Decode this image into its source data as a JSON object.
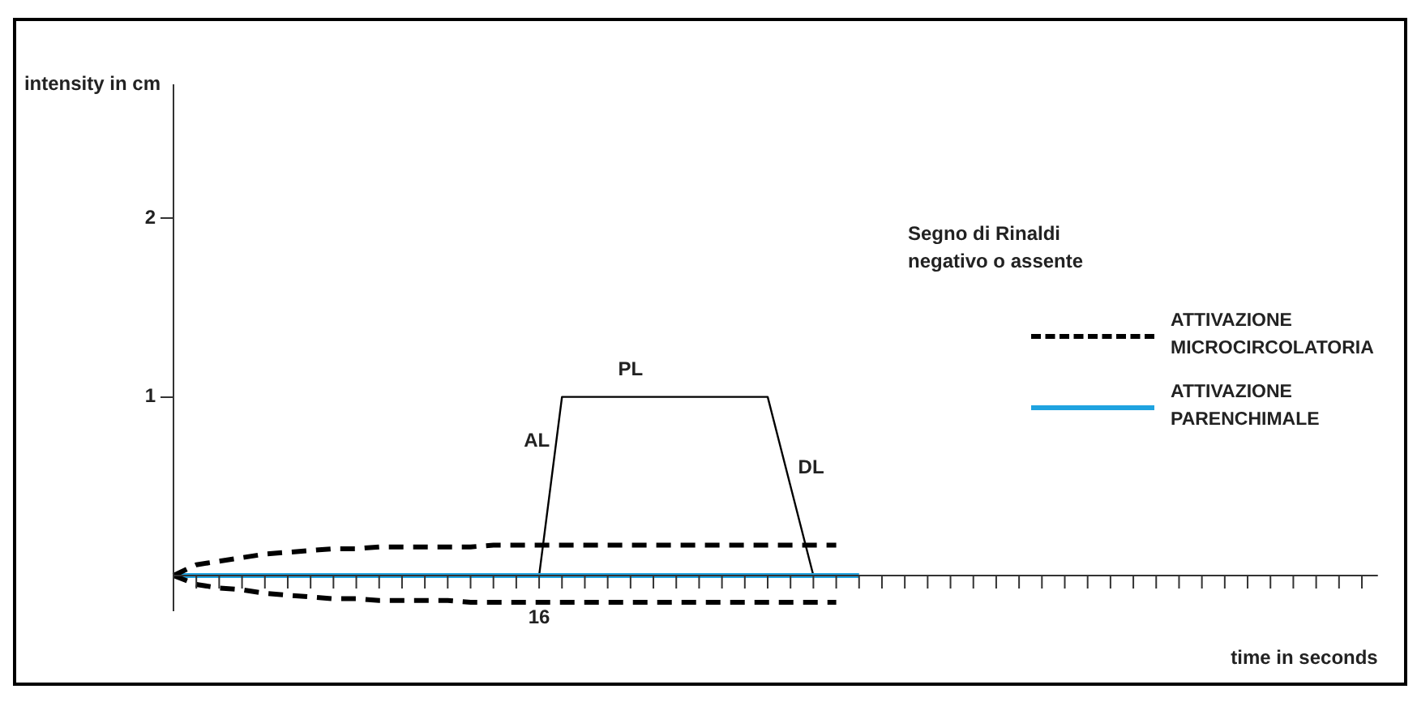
{
  "chart_data": {
    "type": "line",
    "xlabel": "time in seconds",
    "ylabel": "intensity in cm",
    "categories": [
      null,
      null,
      null,
      null,
      null,
      null,
      null,
      null,
      null,
      null,
      null,
      null,
      null,
      null,
      null,
      null,
      "16",
      null,
      null,
      null,
      null,
      null,
      null,
      null,
      null,
      null,
      null,
      null,
      null,
      null,
      null,
      null,
      null,
      null,
      null,
      null,
      null,
      null,
      null,
      null,
      null,
      null,
      null,
      null,
      null,
      null,
      null,
      null,
      null,
      null,
      null,
      null,
      null
    ],
    "ylim": [
      -0.2,
      2.75
    ],
    "yticks": [
      1,
      2
    ],
    "grid": false,
    "legend": "right",
    "marker": "none",
    "series": [
      {
        "name": "ATTIVAZIONE MICROCIRCOLATORIA",
        "color": "#000000",
        "line_style": "dashed",
        "values": [
          0,
          0.06,
          0.08,
          0.1,
          0.12,
          0.13,
          0.14,
          0.15,
          0.15,
          0.16,
          0.16,
          0.16,
          0.16,
          0.16,
          0.17,
          0.17,
          0.17,
          0.17,
          0.17,
          0.17,
          0.17,
          0.17,
          0.17,
          0.17,
          0.17,
          0.17,
          0.17,
          0.17,
          0.17,
          0.17,
          null,
          null,
          null,
          null,
          null,
          null,
          null,
          null,
          null,
          null,
          null,
          null,
          null,
          null,
          null,
          null,
          null,
          null,
          null,
          null,
          null,
          null,
          null
        ]
      },
      {
        "color": "#000000",
        "line_style": "dashed",
        "values": [
          0,
          -0.05,
          -0.07,
          -0.08,
          -0.1,
          -0.11,
          -0.12,
          -0.13,
          -0.13,
          -0.14,
          -0.14,
          -0.14,
          -0.14,
          -0.15,
          -0.15,
          -0.15,
          -0.15,
          -0.15,
          -0.15,
          -0.15,
          -0.15,
          -0.15,
          -0.15,
          -0.15,
          -0.15,
          -0.15,
          -0.15,
          -0.15,
          -0.15,
          -0.15,
          null,
          null,
          null,
          null,
          null,
          null,
          null,
          null,
          null,
          null,
          null,
          null,
          null,
          null,
          null,
          null,
          null,
          null,
          null,
          null,
          null,
          null,
          null
        ]
      },
      {
        "name": "ATTIVAZIONE PARENCHIMALE",
        "color": "#1fa3e0",
        "line_style": "solid",
        "values": [
          0,
          0,
          0,
          0,
          0,
          0,
          0,
          0,
          0,
          0,
          0,
          0,
          0,
          0,
          0,
          0,
          0,
          0,
          0,
          0,
          0,
          0,
          0,
          0,
          0,
          0,
          0,
          0,
          0,
          0,
          0,
          null,
          null,
          null,
          null,
          null,
          null,
          null,
          null,
          null,
          null,
          null,
          null,
          null,
          null,
          null,
          null,
          null,
          null,
          null,
          null,
          null,
          null
        ]
      },
      {
        "color": "#000000",
        "line_style": "solid",
        "values": [
          null,
          null,
          null,
          null,
          null,
          null,
          null,
          null,
          null,
          null,
          null,
          null,
          null,
          null,
          null,
          null,
          0,
          1,
          1,
          1,
          1,
          1,
          1,
          1,
          1,
          1,
          1,
          0.5,
          0,
          null,
          null,
          null,
          null,
          null,
          null,
          null,
          null,
          null,
          null,
          null,
          null,
          null,
          null,
          null,
          null,
          null,
          null,
          null,
          null,
          null,
          null,
          null,
          null
        ]
      }
    ],
    "annotations": [
      "Segno di Rinaldi negativo o assente",
      "AL",
      "PL",
      "DL"
    ]
  }
}
